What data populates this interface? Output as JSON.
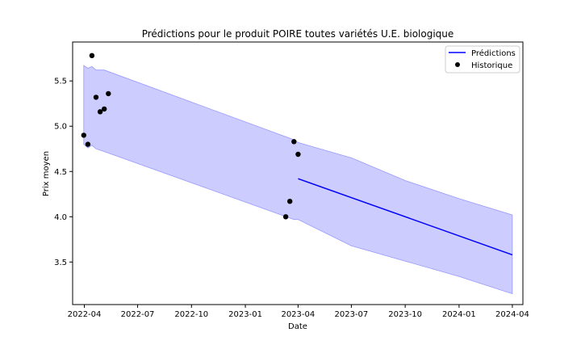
{
  "chart_data": {
    "type": "line",
    "title": "Prédictions pour le produit POIRE toutes variétés U.E. biologique",
    "xlabel": "Date",
    "ylabel": "Prix moyen",
    "x_axis_type": "date",
    "xlim": [
      "2022-03-12",
      "2024-04-19"
    ],
    "ylim": [
      3.03,
      5.93
    ],
    "x_ticks": [
      "2022-04",
      "2022-07",
      "2022-10",
      "2023-01",
      "2023-04",
      "2023-07",
      "2023-10",
      "2024-01",
      "2024-04"
    ],
    "y_ticks": [
      "3.5",
      "4.0",
      "4.5",
      "5.0",
      "5.5"
    ],
    "grid": false,
    "legend_position": "top-right",
    "legend": [
      {
        "label": "Prédictions",
        "kind": "line",
        "color": "#0000ff"
      },
      {
        "label": "Historique",
        "kind": "marker",
        "color": "#000000"
      }
    ],
    "series": [
      {
        "name": "Prédictions",
        "kind": "line",
        "color": "#0000ff",
        "x": [
          "2023-04-01",
          "2024-04-01"
        ],
        "y": [
          4.42,
          3.58
        ]
      },
      {
        "name": "Historique",
        "kind": "scatter",
        "color": "#000000",
        "x": [
          "2022-03-31",
          "2022-04-07",
          "2022-04-14",
          "2022-04-21",
          "2022-04-28",
          "2022-05-05",
          "2022-05-12",
          "2023-03-11",
          "2023-03-18",
          "2023-03-25",
          "2023-04-01"
        ],
        "y": [
          4.9,
          4.8,
          5.78,
          5.32,
          5.16,
          5.19,
          5.36,
          4.0,
          4.17,
          4.83,
          4.69
        ]
      }
    ],
    "band": {
      "color": "#ccccff",
      "edge_color": "#9999ff",
      "x": [
        "2022-03-31",
        "2022-04-07",
        "2022-04-14",
        "2022-04-21",
        "2022-05-05",
        "2023-03-25",
        "2023-04-01",
        "2023-07-01",
        "2023-10-01",
        "2024-01-01",
        "2024-04-01"
      ],
      "upper": [
        5.67,
        5.64,
        5.66,
        5.62,
        5.62,
        4.85,
        4.82,
        4.65,
        4.4,
        4.2,
        4.02
      ],
      "lower": [
        4.8,
        4.76,
        4.79,
        4.75,
        4.72,
        3.97,
        3.97,
        3.68,
        3.51,
        3.34,
        3.15
      ]
    }
  }
}
